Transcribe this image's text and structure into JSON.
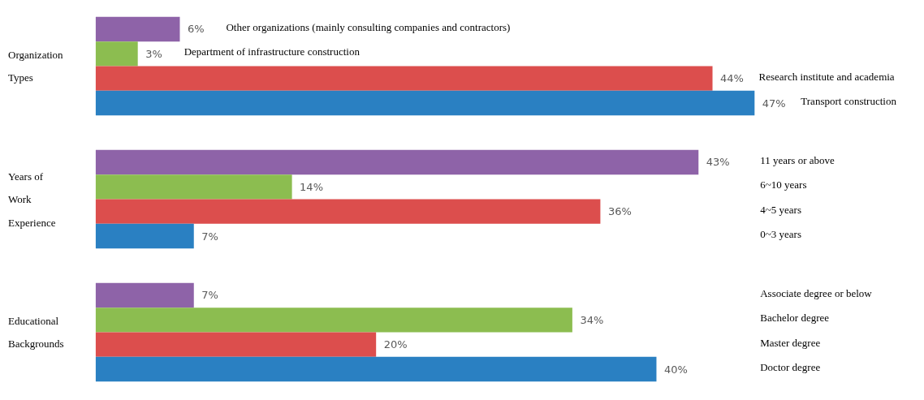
{
  "chart_data": [
    {
      "type": "bar",
      "orientation": "horizontal",
      "ylabel": "Organization Types",
      "categories": [
        "Other organizations (mainly consulting companies and contractors)",
        "Department of infrastructure construction",
        "Research institute and academia",
        "Transport construction"
      ],
      "values": [
        6,
        3,
        44,
        47
      ],
      "value_labels": [
        "6%",
        "3%",
        "44%",
        "47%"
      ],
      "colors": [
        "#8e63a8",
        "#8cbd50",
        "#dc4e4d",
        "#2a80c2"
      ]
    },
    {
      "type": "bar",
      "orientation": "horizontal",
      "ylabel": "Years of Work Experience",
      "categories": [
        "11 years or above",
        "6~10 years",
        "4~5 years",
        "0~3 years"
      ],
      "values": [
        43,
        14,
        36,
        7
      ],
      "value_labels": [
        "43%",
        "14%",
        "36%",
        "7%"
      ],
      "colors": [
        "#8e63a8",
        "#8cbd50",
        "#dc4e4d",
        "#2a80c2"
      ]
    },
    {
      "type": "bar",
      "orientation": "horizontal",
      "ylabel": "Educational Backgrounds",
      "categories": [
        "Associate degree or below",
        "Bachelor degree",
        "Master degree",
        "Doctor degree"
      ],
      "values": [
        7,
        34,
        20,
        40
      ],
      "value_labels": [
        "7%",
        "34%",
        "20%",
        "40%"
      ],
      "colors": [
        "#8e63a8",
        "#8cbd50",
        "#dc4e4d",
        "#2a80c2"
      ]
    }
  ]
}
